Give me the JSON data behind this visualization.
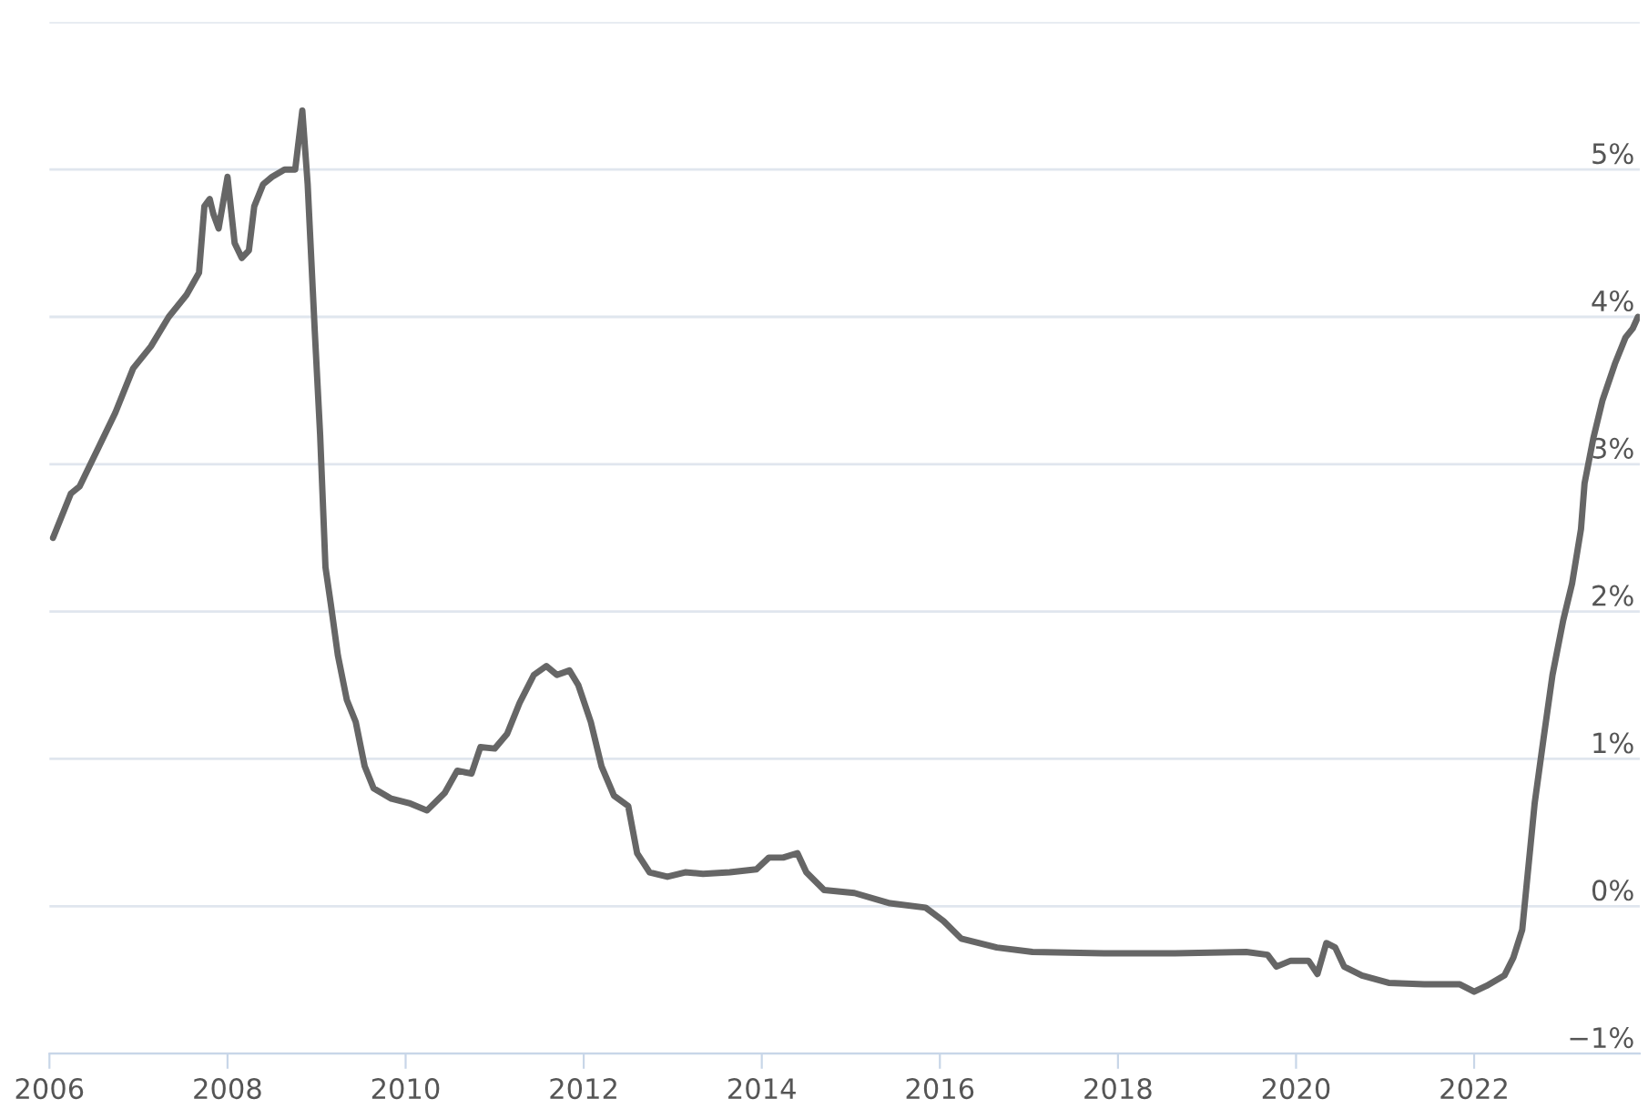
{
  "chart_data": {
    "type": "line",
    "grid": "y",
    "legend": false,
    "xlim": [
      2006,
      2023.86
    ],
    "xticks": [
      2006,
      2008,
      2010,
      2012,
      2014,
      2016,
      2018,
      2020,
      2022
    ],
    "ylim": [
      -1,
      6
    ],
    "yticks": [
      {
        "value": -1,
        "label": "−1%"
      },
      {
        "value": 0,
        "label": "0%"
      },
      {
        "value": 1,
        "label": "1%"
      },
      {
        "value": 2,
        "label": "2%"
      },
      {
        "value": 3,
        "label": "3%"
      },
      {
        "value": 4,
        "label": "4%"
      },
      {
        "value": 5,
        "label": "5%"
      },
      {
        "value": 6,
        "label": null
      }
    ],
    "x": [
      2006.04,
      2006.24,
      2006.34,
      2006.54,
      2006.74,
      2006.94,
      2007.14,
      2007.34,
      2007.54,
      2007.68,
      2007.74,
      2007.8,
      2007.84,
      2007.9,
      2008.0,
      2008.08,
      2008.16,
      2008.24,
      2008.3,
      2008.4,
      2008.5,
      2008.64,
      2008.76,
      2008.84,
      2008.9,
      2008.98,
      2009.04,
      2009.1,
      2009.16,
      2009.24,
      2009.34,
      2009.44,
      2009.54,
      2009.64,
      2009.84,
      2010.04,
      2010.24,
      2010.44,
      2010.58,
      2010.74,
      2010.84,
      2011.0,
      2011.14,
      2011.28,
      2011.44,
      2011.58,
      2011.7,
      2011.84,
      2011.94,
      2012.08,
      2012.2,
      2012.34,
      2012.5,
      2012.6,
      2012.74,
      2012.94,
      2013.14,
      2013.34,
      2013.64,
      2013.94,
      2014.08,
      2014.24,
      2014.4,
      2014.5,
      2014.7,
      2015.04,
      2015.44,
      2015.84,
      2016.04,
      2016.24,
      2016.64,
      2017.04,
      2017.84,
      2018.64,
      2019.44,
      2019.68,
      2019.78,
      2019.94,
      2020.14,
      2020.24,
      2020.34,
      2020.44,
      2020.54,
      2020.74,
      2021.04,
      2021.44,
      2021.84,
      2022.0,
      2022.14,
      2022.34,
      2022.44,
      2022.54,
      2022.6,
      2022.68,
      2022.78,
      2022.88,
      2023.0,
      2023.1,
      2023.2,
      2023.24,
      2023.34,
      2023.44,
      2023.58,
      2023.7,
      2023.78,
      2023.84
    ],
    "series": [
      {
        "color": "#666666",
        "values": [
          2.5,
          2.8,
          2.85,
          3.1,
          3.35,
          3.65,
          3.8,
          4.0,
          4.15,
          4.3,
          4.75,
          4.8,
          4.7,
          4.6,
          4.95,
          4.5,
          4.4,
          4.45,
          4.75,
          4.9,
          4.95,
          5.0,
          5.0,
          5.4,
          4.9,
          3.9,
          3.2,
          2.3,
          2.05,
          1.7,
          1.4,
          1.25,
          0.95,
          0.8,
          0.73,
          0.7,
          0.65,
          0.77,
          0.92,
          0.9,
          1.08,
          1.07,
          1.17,
          1.38,
          1.57,
          1.63,
          1.57,
          1.6,
          1.5,
          1.25,
          0.95,
          0.75,
          0.68,
          0.36,
          0.23,
          0.2,
          0.23,
          0.22,
          0.23,
          0.25,
          0.33,
          0.33,
          0.36,
          0.23,
          0.11,
          0.09,
          0.02,
          -0.01,
          -0.1,
          -0.22,
          -0.28,
          -0.31,
          -0.32,
          -0.32,
          -0.31,
          -0.33,
          -0.41,
          -0.37,
          -0.37,
          -0.46,
          -0.25,
          -0.28,
          -0.41,
          -0.47,
          -0.52,
          -0.53,
          -0.53,
          -0.58,
          -0.54,
          -0.47,
          -0.35,
          -0.16,
          0.21,
          0.7,
          1.14,
          1.57,
          1.94,
          2.19,
          2.56,
          2.87,
          3.18,
          3.43,
          3.68,
          3.86,
          3.92,
          4.0
        ]
      }
    ]
  }
}
